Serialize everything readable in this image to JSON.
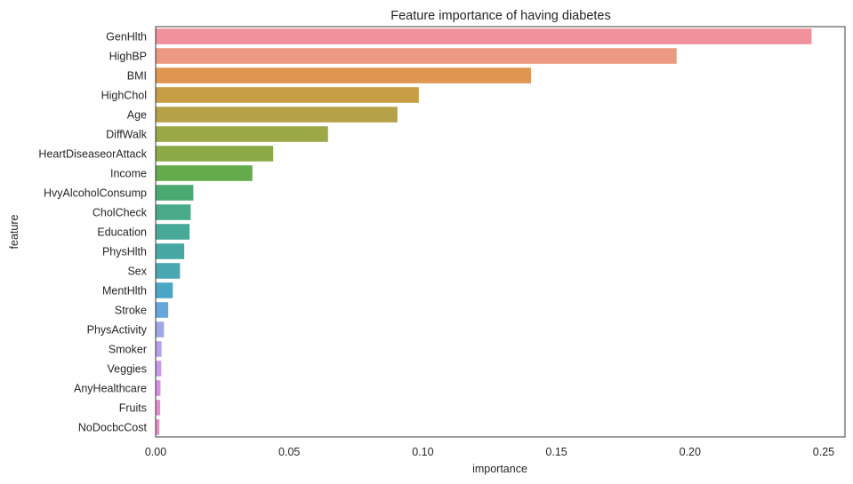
{
  "chart_data": {
    "type": "bar",
    "orientation": "horizontal",
    "title": "Feature importance of having diabetes",
    "xlabel": "importance",
    "ylabel": "feature",
    "xlim": [
      0,
      0.258
    ],
    "xticks": [
      0.0,
      0.05,
      0.1,
      0.15,
      0.2,
      0.25
    ],
    "xtick_labels": [
      "0.00",
      "0.05",
      "0.10",
      "0.15",
      "0.20",
      "0.25"
    ],
    "grid": false,
    "categories": [
      "GenHlth",
      "HighBP",
      "BMI",
      "HighChol",
      "Age",
      "DiffWalk",
      "HeartDiseaseorAttack",
      "Income",
      "HvyAlcoholConsump",
      "CholCheck",
      "Education",
      "PhysHlth",
      "Sex",
      "MentHlth",
      "Stroke",
      "PhysActivity",
      "Smoker",
      "Veggies",
      "AnyHealthcare",
      "Fruits",
      "NoDocbcCost"
    ],
    "values": [
      0.2455,
      0.195,
      0.1405,
      0.0985,
      0.0905,
      0.0645,
      0.044,
      0.0362,
      0.0141,
      0.0131,
      0.0127,
      0.0107,
      0.0091,
      0.0064,
      0.0047,
      0.0031,
      0.0022,
      0.0021,
      0.0018,
      0.0017,
      0.0014
    ],
    "colors": [
      "#f0919b",
      "#ec9982",
      "#df9651",
      "#c79d46",
      "#b5a147",
      "#9ca745",
      "#8ba947",
      "#63ab4b",
      "#4aaa71",
      "#48aa88",
      "#47a997",
      "#47a8a3",
      "#48a7b0",
      "#4ba5c5",
      "#66a6dc",
      "#9fa7e5",
      "#b7a1ea",
      "#c898ec",
      "#d88ee6",
      "#e68bd1",
      "#ec8fc2"
    ]
  }
}
